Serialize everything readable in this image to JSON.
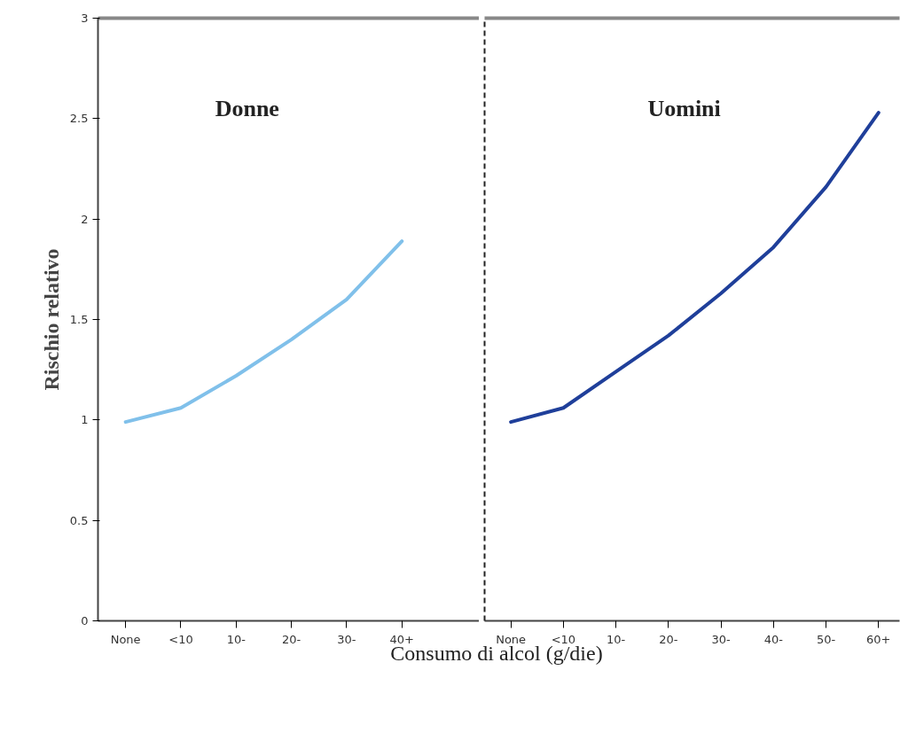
{
  "chart_data": [
    {
      "type": "line",
      "annotations": [
        "Donne"
      ],
      "ylabel": "Rischio relativo",
      "xlabel": "Consumo di alcol (g/die)",
      "categories": [
        "None",
        "<10",
        "10-",
        "20-",
        "30-",
        "40+"
      ],
      "series": [
        {
          "color": "#80c0ea",
          "values": [
            0.99,
            1.06,
            1.22,
            1.4,
            1.6,
            1.89
          ]
        }
      ],
      "ylim": [
        0,
        3
      ],
      "yticks": [
        0,
        0.5,
        1,
        1.5,
        2,
        2.5,
        3
      ],
      "grid": false,
      "marker": "none",
      "line_style": "solid"
    },
    {
      "type": "line",
      "annotations": [
        "Uomini"
      ],
      "categories": [
        "None",
        "<10",
        "10-",
        "20-",
        "30-",
        "40-",
        "50-",
        "60+"
      ],
      "series": [
        {
          "color": "#1f3f9a",
          "values": [
            0.99,
            1.06,
            1.24,
            1.42,
            1.63,
            1.86,
            2.16,
            2.53
          ]
        }
      ],
      "ylim": [
        0,
        3
      ],
      "yticks": [
        0,
        0.5,
        1,
        1.5,
        2,
        2.5,
        3
      ],
      "tick_labels": "x",
      "grid": false,
      "marker": "none",
      "line_style": "solid"
    }
  ]
}
